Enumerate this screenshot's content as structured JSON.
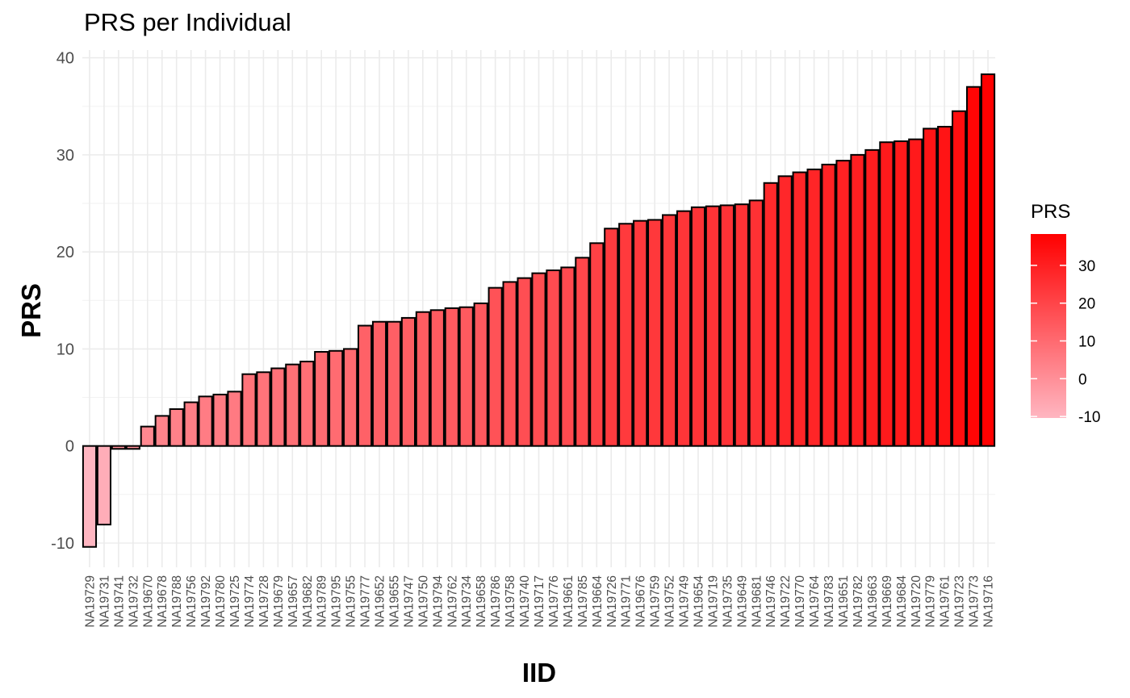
{
  "chart_data": {
    "type": "bar",
    "title": "PRS per Individual",
    "xlabel": "IID",
    "ylabel": "PRS",
    "ylim": [
      -12.5,
      40.8
    ],
    "yticks": [
      -10,
      0,
      10,
      20,
      30,
      40
    ],
    "grid": true,
    "legend": {
      "title": "PRS",
      "placement": "right",
      "ticks": [
        -10,
        0,
        10,
        20,
        30
      ],
      "range": [
        -10.4,
        38.3
      ],
      "low_color": "#ffb6c1",
      "high_color": "#ff0000"
    },
    "categories": [
      "NA19729",
      "NA19731",
      "NA19741",
      "NA19732",
      "NA19670",
      "NA19678",
      "NA19788",
      "NA19756",
      "NA19792",
      "NA19780",
      "NA19725",
      "NA19774",
      "NA19728",
      "NA19679",
      "NA19657",
      "NA19682",
      "NA19789",
      "NA19795",
      "NA19755",
      "NA19777",
      "NA19652",
      "NA19655",
      "NA19747",
      "NA19750",
      "NA19794",
      "NA19762",
      "NA19734",
      "NA19658",
      "NA19786",
      "NA19758",
      "NA19740",
      "NA19717",
      "NA19776",
      "NA19661",
      "NA19785",
      "NA19664",
      "NA19726",
      "NA19771",
      "NA19676",
      "NA19759",
      "NA19752",
      "NA19749",
      "NA19654",
      "NA19719",
      "NA19735",
      "NA19649",
      "NA19681",
      "NA19746",
      "NA19722",
      "NA19770",
      "NA19764",
      "NA19783",
      "NA19651",
      "NA19782",
      "NA19663",
      "NA19669",
      "NA19684",
      "NA19720",
      "NA19779",
      "NA19761",
      "NA19723",
      "NA19773",
      "NA19716"
    ],
    "values": [
      -10.4,
      -8.1,
      -0.3,
      -0.3,
      2.0,
      3.1,
      3.8,
      4.5,
      5.1,
      5.3,
      5.6,
      7.4,
      7.6,
      8.0,
      8.4,
      8.7,
      9.7,
      9.8,
      10.0,
      12.4,
      12.8,
      12.8,
      13.2,
      13.8,
      14.0,
      14.2,
      14.3,
      14.7,
      16.3,
      16.9,
      17.3,
      17.8,
      18.1,
      18.4,
      19.4,
      20.9,
      22.4,
      22.9,
      23.2,
      23.3,
      23.8,
      24.2,
      24.6,
      24.7,
      24.8,
      24.9,
      25.3,
      27.1,
      27.8,
      28.2,
      28.5,
      29.0,
      29.4,
      30.0,
      30.5,
      31.3,
      31.4,
      31.6,
      32.7,
      32.9,
      34.5,
      37.0,
      38.3
    ]
  }
}
